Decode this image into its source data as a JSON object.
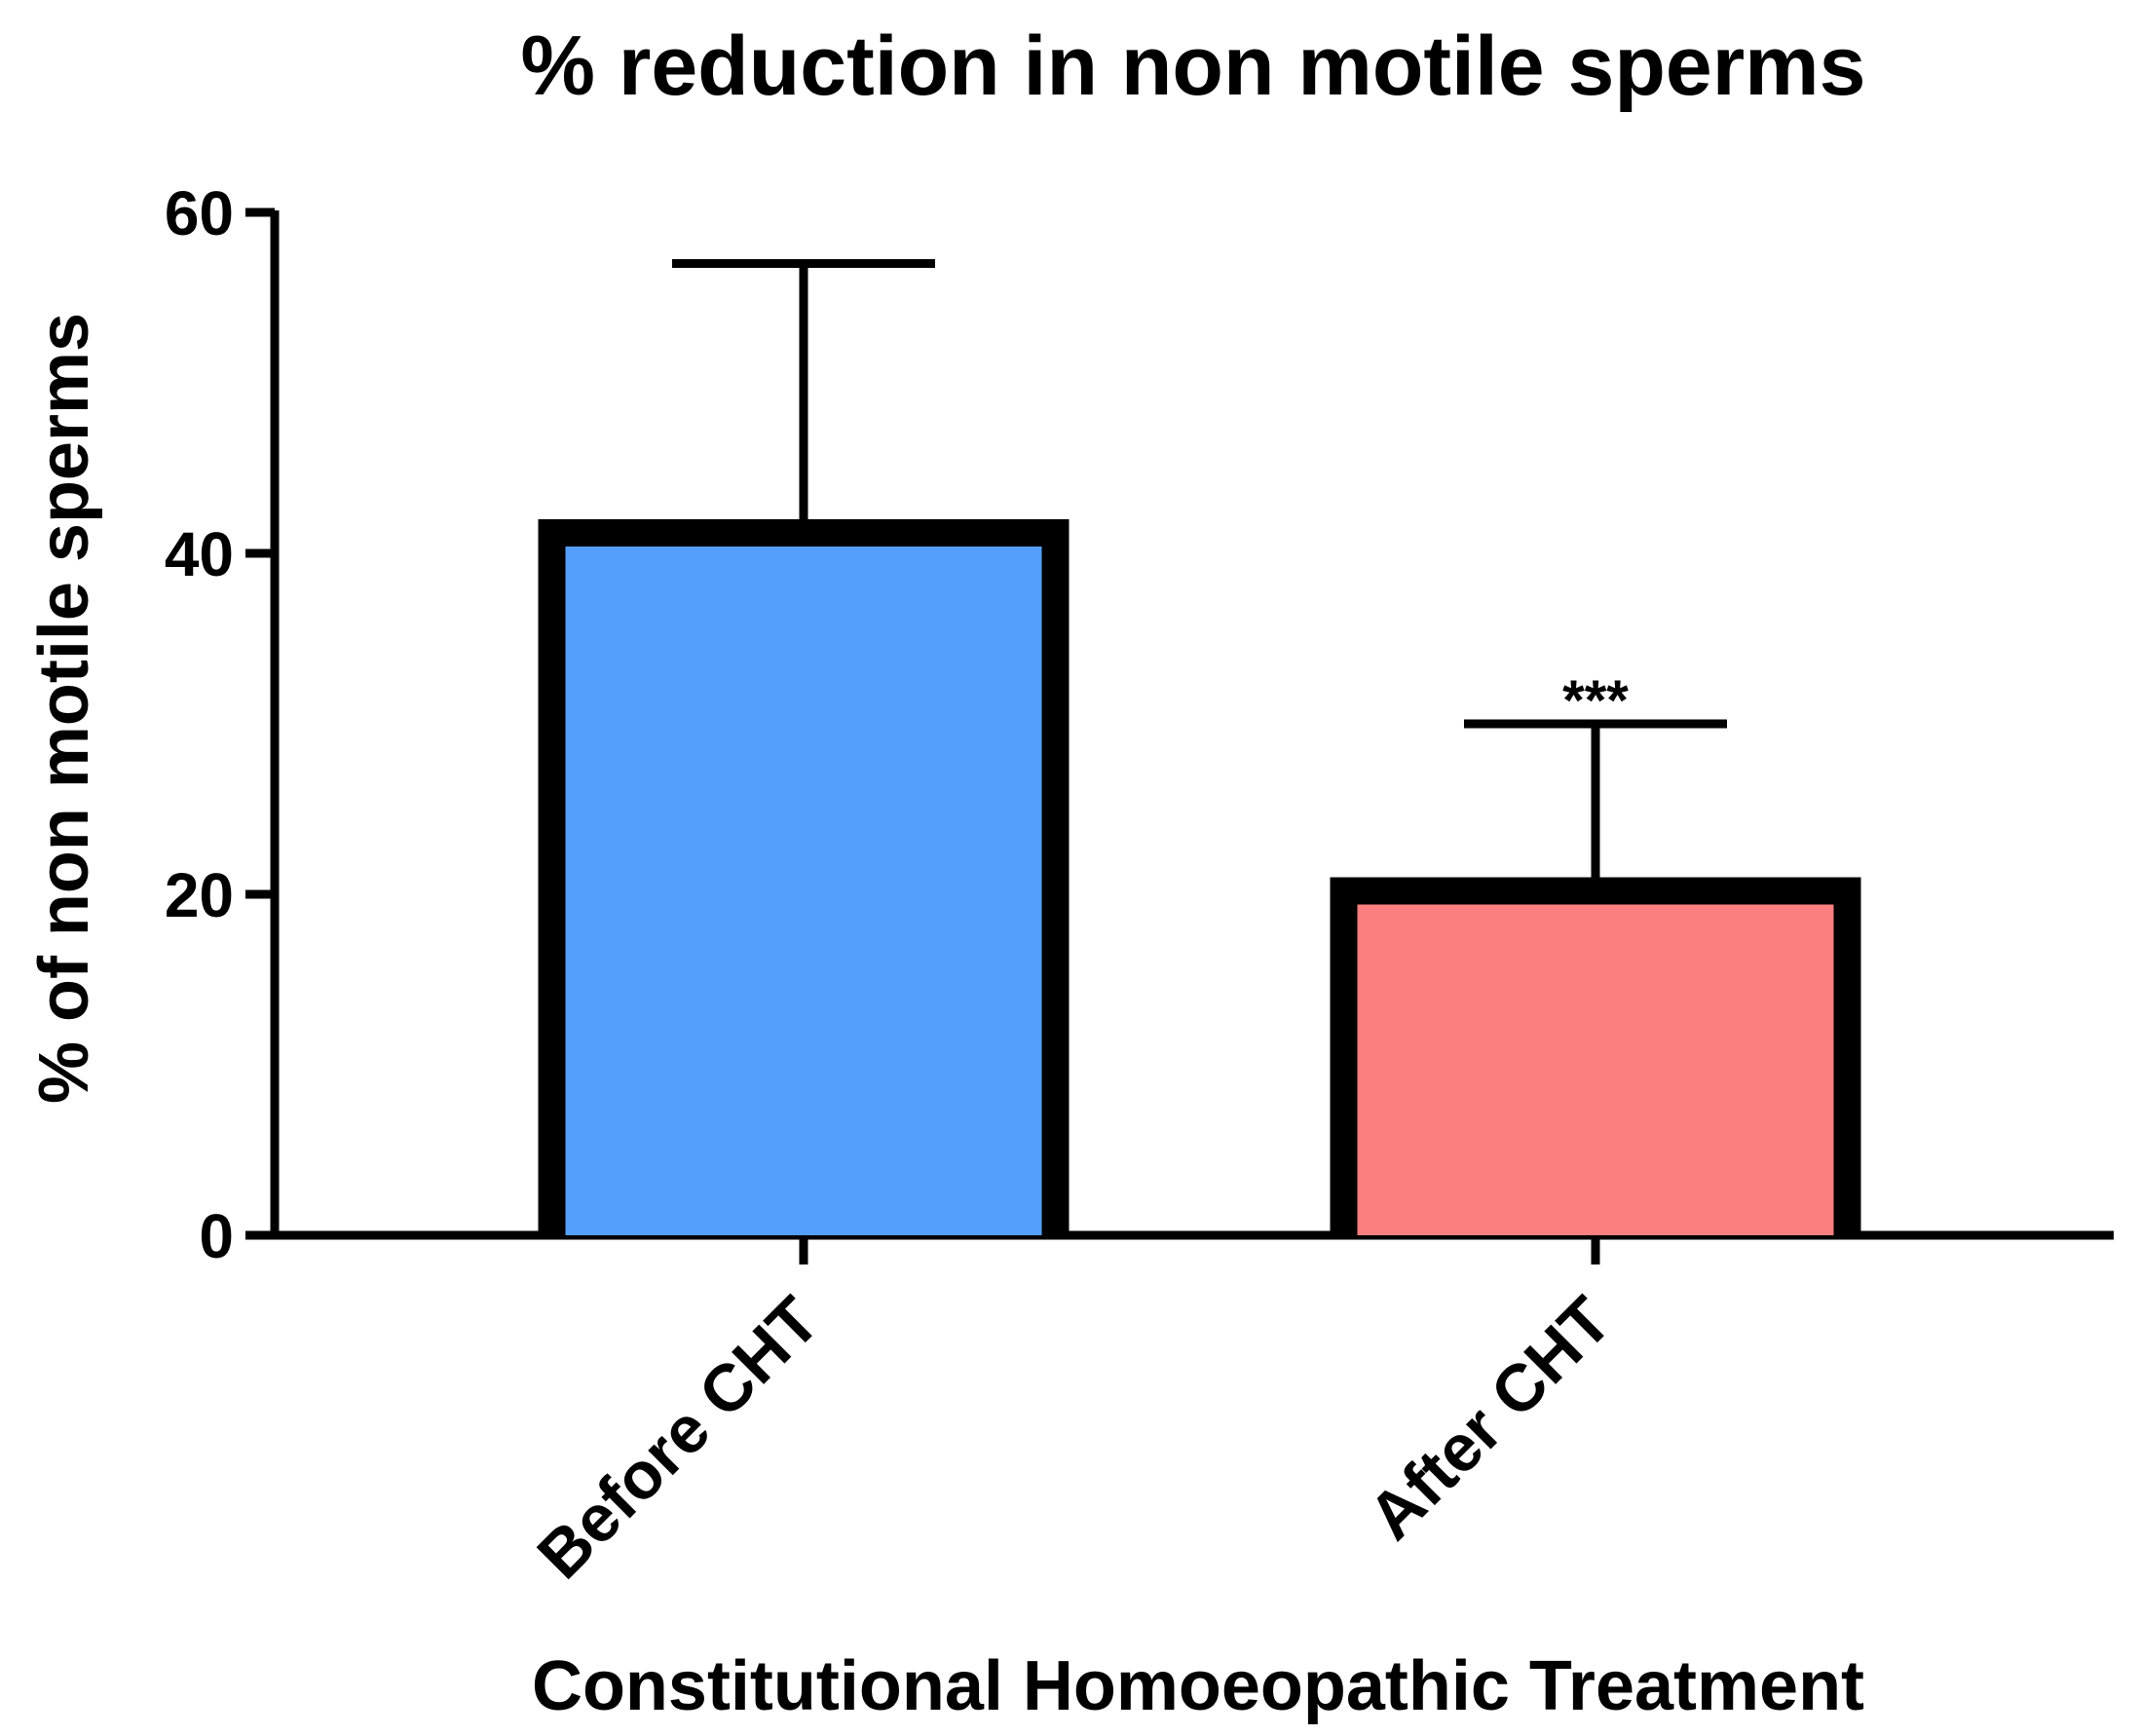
{
  "chart_data": {
    "type": "bar",
    "title": "% reduction in non motile sperms",
    "xlabel": "Constitutional Homoeopathic Treatment",
    "ylabel": "% of non motile sperms",
    "categories": [
      "Before CHT",
      "After CHT"
    ],
    "values": [
      42,
      21
    ],
    "error_upper": [
      57,
      30
    ],
    "annotations": [
      "",
      "***"
    ],
    "ylim": [
      0,
      60
    ],
    "yticks": [
      "0",
      "20",
      "40",
      "60"
    ],
    "grid": false,
    "legend": "none",
    "colors": [
      "#559ffc",
      "#fc7f7f"
    ],
    "edge_color": "#000000"
  }
}
